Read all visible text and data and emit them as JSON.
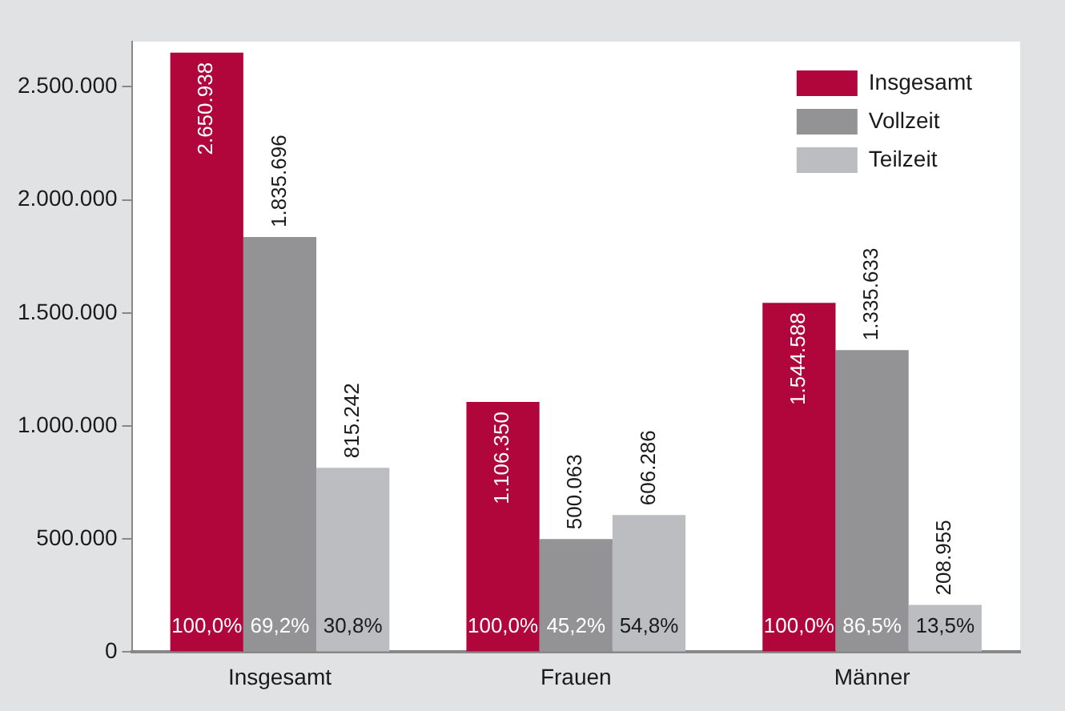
{
  "chart_data": {
    "type": "bar",
    "categories": [
      "Insgesamt",
      "Frauen",
      "Männer"
    ],
    "series": [
      {
        "name": "Insgesamt",
        "color": "#b0063c",
        "values": [
          2650938,
          1106350,
          1544588
        ],
        "value_labels": [
          "2.650.938",
          "1.106.350",
          "1.544.588"
        ]
      },
      {
        "name": "Vollzeit",
        "color": "#939396",
        "values": [
          1835696,
          500063,
          1335633
        ],
        "value_labels": [
          "1.835.696",
          "500.063",
          "1.335.633"
        ]
      },
      {
        "name": "Teilzeit",
        "color": "#bcbdc0",
        "values": [
          815242,
          606286,
          208955
        ],
        "value_labels": [
          "815.242",
          "606.286",
          "208.955"
        ]
      }
    ],
    "ylim": [
      0,
      2700000
    ],
    "yticks": [
      {
        "value": 0,
        "label": "0"
      },
      {
        "value": 500000,
        "label": "500.000"
      },
      {
        "value": 1000000,
        "label": "1.000.000"
      },
      {
        "value": 1500000,
        "label": "1.500.000"
      },
      {
        "value": 2000000,
        "label": "2.000.000"
      },
      {
        "value": 2500000,
        "label": "2.500.000"
      }
    ],
    "grid": false,
    "legend": "top right",
    "annotations": [
      "100,0%",
      "69,2%",
      "30,8%",
      "100,0%",
      "45,2%",
      "54,8%",
      "100,0%",
      "86,5%",
      "13,5%"
    ]
  }
}
